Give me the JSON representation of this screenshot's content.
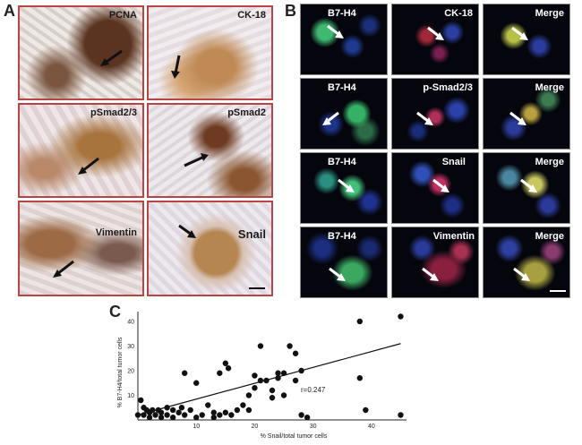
{
  "panels": {
    "a": {
      "letter": "A",
      "tiles": [
        {
          "label": "PCNA"
        },
        {
          "label": "CK-18"
        },
        {
          "label": "pSmad2/3"
        },
        {
          "label": "pSmad2"
        },
        {
          "label": "Vimentin"
        },
        {
          "label": "Snail"
        }
      ]
    },
    "b": {
      "letter": "B",
      "rows": [
        {
          "left": "B7-H4",
          "middle": "CK-18",
          "right": "Merge"
        },
        {
          "left": "B7-H4",
          "middle": "p-Smad2/3",
          "right": "Merge"
        },
        {
          "left": "B7-H4",
          "middle": "Snail",
          "right": "Merge"
        },
        {
          "left": "B7-H4",
          "middle": "Vimentin",
          "right": "Merge"
        }
      ]
    },
    "c": {
      "letter": "C"
    }
  },
  "chart_data": {
    "type": "scatter",
    "xlabel": "% Snail/total tumor cells",
    "ylabel": "% B7-H4/total tumor cells",
    "xlim": [
      0,
      46
    ],
    "ylim": [
      0,
      44
    ],
    "xticks": [
      10,
      20,
      30,
      40
    ],
    "yticks": [
      10,
      20,
      30,
      40
    ],
    "annotation": "r=0.247",
    "fit_line": {
      "x": [
        0,
        45
      ],
      "y": [
        2,
        31
      ]
    },
    "points": [
      [
        0,
        2
      ],
      [
        0.5,
        8
      ],
      [
        1,
        5
      ],
      [
        1,
        2
      ],
      [
        1.5,
        4
      ],
      [
        2,
        1
      ],
      [
        2,
        3
      ],
      [
        2.5,
        4
      ],
      [
        3,
        2
      ],
      [
        3.5,
        4
      ],
      [
        4,
        3
      ],
      [
        4,
        1
      ],
      [
        5,
        2
      ],
      [
        5,
        5
      ],
      [
        6,
        4
      ],
      [
        6,
        1
      ],
      [
        7,
        3
      ],
      [
        7.5,
        5
      ],
      [
        8,
        2
      ],
      [
        8,
        19
      ],
      [
        9,
        4
      ],
      [
        10,
        15
      ],
      [
        10,
        1
      ],
      [
        11,
        2
      ],
      [
        12,
        6
      ],
      [
        13,
        3
      ],
      [
        13,
        1
      ],
      [
        14,
        2
      ],
      [
        14,
        19
      ],
      [
        15,
        3
      ],
      [
        15,
        23
      ],
      [
        15.5,
        21
      ],
      [
        16,
        2
      ],
      [
        17,
        4
      ],
      [
        18,
        6
      ],
      [
        19,
        10
      ],
      [
        19,
        4
      ],
      [
        20,
        13
      ],
      [
        20,
        18
      ],
      [
        21,
        30
      ],
      [
        21,
        16
      ],
      [
        22,
        16
      ],
      [
        23,
        12
      ],
      [
        23,
        9
      ],
      [
        24,
        19
      ],
      [
        24,
        17
      ],
      [
        25,
        10
      ],
      [
        25,
        19
      ],
      [
        26,
        30
      ],
      [
        27,
        27
      ],
      [
        27,
        16
      ],
      [
        28,
        20
      ],
      [
        28,
        2
      ],
      [
        29,
        1
      ],
      [
        38,
        40
      ],
      [
        38,
        17
      ],
      [
        39,
        4
      ],
      [
        45,
        42
      ],
      [
        45,
        2
      ]
    ]
  }
}
